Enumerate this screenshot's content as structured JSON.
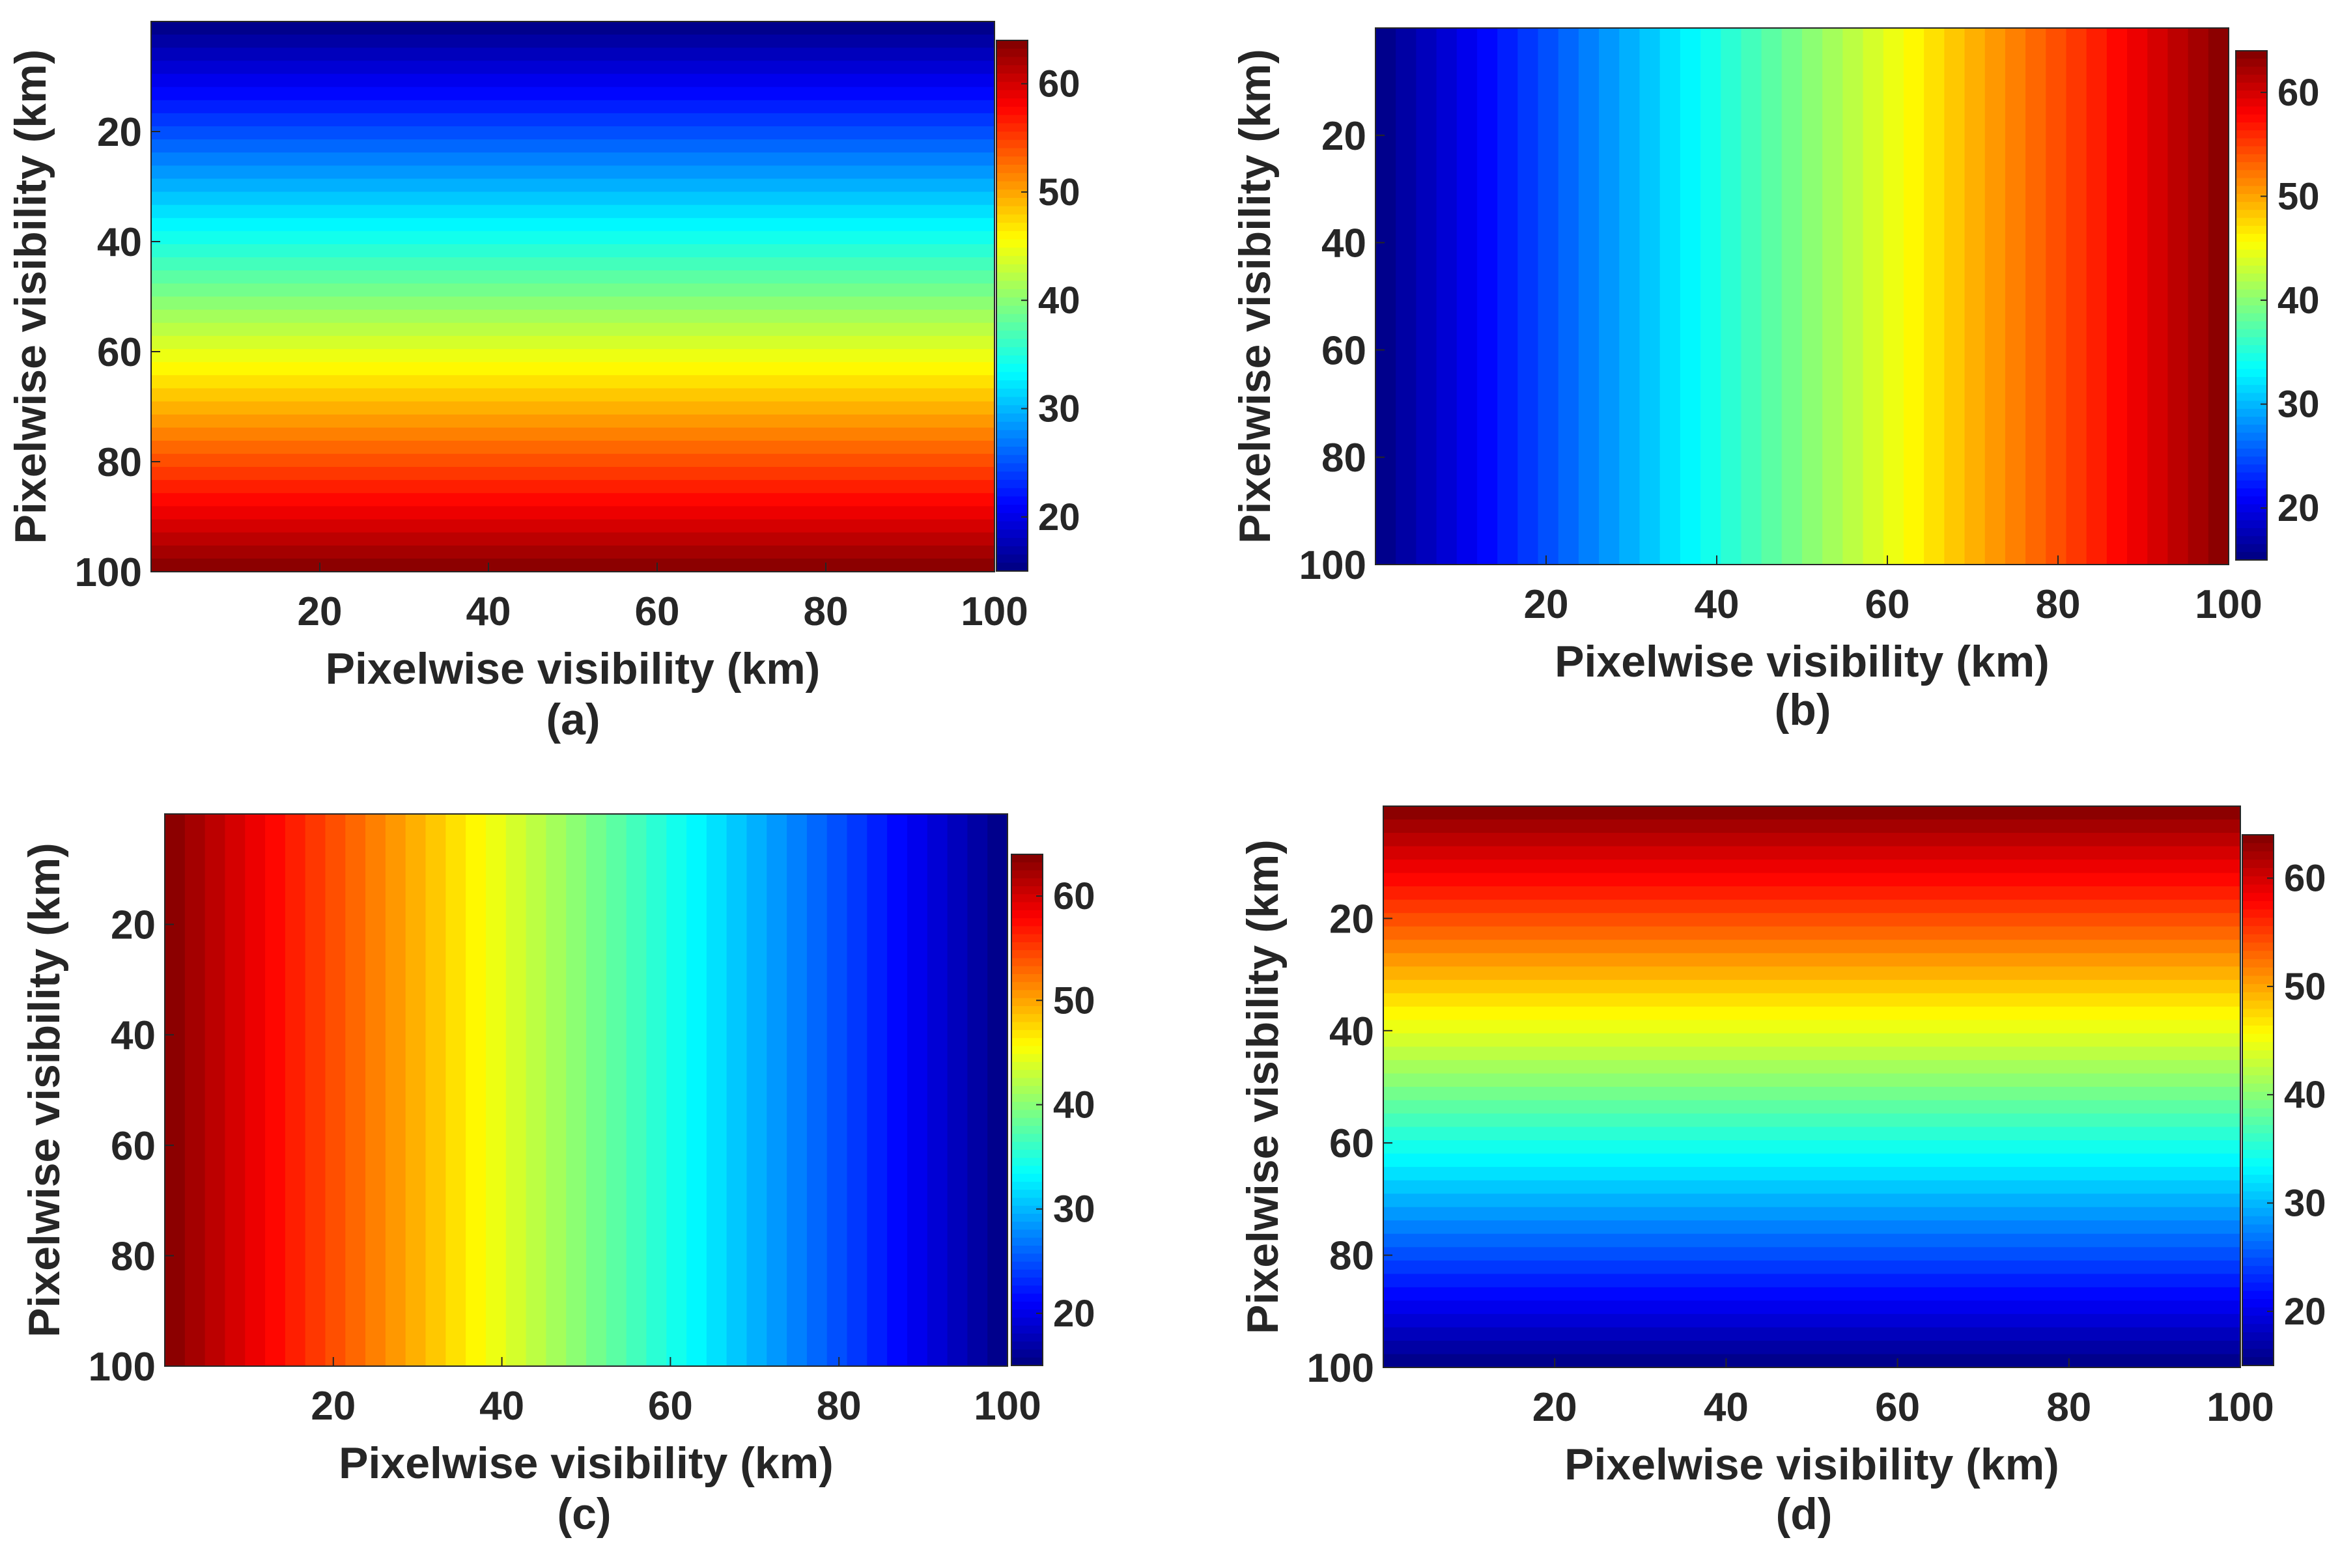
{
  "figure": {
    "panels_count": 4
  },
  "chart_data": [
    {
      "type": "heatmap",
      "caption": "(a)",
      "xlabel": "Pixelwise visibility (km)",
      "ylabel": "Pixelwise visibility (km)",
      "xlim": [
        0,
        100
      ],
      "ylim": [
        0,
        100
      ],
      "y_reversed": true,
      "xticks": [
        "20",
        "40",
        "60",
        "80",
        "100"
      ],
      "yticks": [
        "20",
        "40",
        "60",
        "80",
        "100"
      ],
      "gradient_direction": "vertical",
      "value_min": 15,
      "value_max": 64,
      "description": "Value increases from top (blue, ~15) to bottom (dark red, ~64); constant along x",
      "colorbar": {
        "colormap": "jet",
        "range": [
          15,
          64
        ],
        "ticks": [
          "20",
          "30",
          "40",
          "50",
          "60"
        ]
      }
    },
    {
      "type": "heatmap",
      "caption": "(b)",
      "xlabel": "Pixelwise visibility (km)",
      "ylabel": "Pixelwise visibility (km)",
      "xlim": [
        0,
        100
      ],
      "ylim": [
        0,
        100
      ],
      "y_reversed": true,
      "xticks": [
        "20",
        "40",
        "60",
        "80",
        "100"
      ],
      "yticks": [
        "20",
        "40",
        "60",
        "80",
        "100"
      ],
      "gradient_direction": "horizontal",
      "value_min": 15,
      "value_max": 64,
      "description": "Value increases from left (blue, ~15) to right (dark red, ~64); constant along y",
      "colorbar": {
        "colormap": "jet",
        "range": [
          15,
          64
        ],
        "ticks": [
          "20",
          "30",
          "40",
          "50",
          "60"
        ]
      }
    },
    {
      "type": "heatmap",
      "caption": "(c)",
      "xlabel": "Pixelwise visibility (km)",
      "ylabel": "Pixelwise visibility (km)",
      "xlim": [
        0,
        100
      ],
      "ylim": [
        0,
        100
      ],
      "y_reversed": true,
      "xticks": [
        "20",
        "40",
        "60",
        "80",
        "100"
      ],
      "yticks": [
        "20",
        "40",
        "60",
        "80",
        "100"
      ],
      "gradient_direction": "horizontal-reversed",
      "value_min": 15,
      "value_max": 64,
      "description": "Value decreases from left (dark red, ~64) to right (blue, ~15); constant along y",
      "colorbar": {
        "colormap": "jet",
        "range": [
          15,
          64
        ],
        "ticks": [
          "20",
          "30",
          "40",
          "50",
          "60"
        ]
      }
    },
    {
      "type": "heatmap",
      "caption": "(d)",
      "xlabel": "Pixelwise visibility (km)",
      "ylabel": "Pixelwise visibility (km)",
      "xlim": [
        0,
        100
      ],
      "ylim": [
        0,
        100
      ],
      "y_reversed": true,
      "xticks": [
        "20",
        "40",
        "60",
        "80",
        "100"
      ],
      "yticks": [
        "20",
        "40",
        "60",
        "80",
        "100"
      ],
      "gradient_direction": "vertical-reversed",
      "value_min": 15,
      "value_max": 64,
      "description": "Value decreases from top (dark red, ~64) to bottom (blue, ~15); constant along x",
      "colorbar": {
        "colormap": "jet",
        "range": [
          15,
          64
        ],
        "ticks": [
          "20",
          "30",
          "40",
          "50",
          "60"
        ]
      }
    }
  ]
}
